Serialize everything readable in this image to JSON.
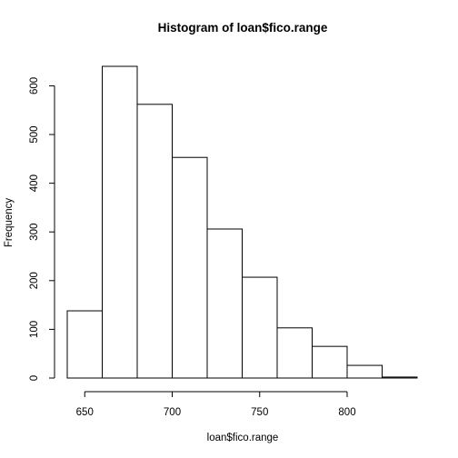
{
  "chart_data": {
    "type": "bar",
    "title": "Histogram of loan$fico.range",
    "xlabel": "loan$fico.range",
    "ylabel": "Frequency",
    "bins": [
      {
        "from": 640,
        "to": 660,
        "count": 138
      },
      {
        "from": 660,
        "to": 680,
        "count": 640
      },
      {
        "from": 680,
        "to": 700,
        "count": 562
      },
      {
        "from": 700,
        "to": 720,
        "count": 453
      },
      {
        "from": 720,
        "to": 740,
        "count": 306
      },
      {
        "from": 740,
        "to": 760,
        "count": 207
      },
      {
        "from": 760,
        "to": 780,
        "count": 103
      },
      {
        "from": 780,
        "to": 800,
        "count": 65
      },
      {
        "from": 800,
        "to": 820,
        "count": 26
      },
      {
        "from": 820,
        "to": 840,
        "count": 2
      }
    ],
    "x_ticks": [
      650,
      700,
      750,
      800
    ],
    "y_ticks": [
      0,
      100,
      200,
      300,
      400,
      500,
      600
    ],
    "xlim": [
      640,
      840
    ],
    "ylim": [
      0,
      640
    ],
    "grid": false,
    "bar_fill": "#ffffff",
    "bar_stroke": "#000000"
  }
}
